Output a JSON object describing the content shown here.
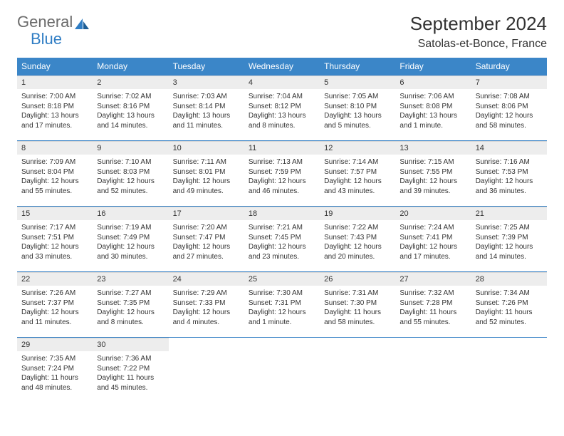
{
  "brand": {
    "part1": "General",
    "part2": "Blue"
  },
  "title": "September 2024",
  "location": "Satolas-et-Bonce, France",
  "colors": {
    "header_bg": "#3b86c8",
    "header_text": "#ffffff",
    "week_border": "#2f7dc4",
    "daynum_bg": "#ededed",
    "text": "#333333",
    "brand_grey": "#6b6b6b",
    "brand_blue": "#2f7dc4",
    "page_bg": "#ffffff"
  },
  "typography": {
    "title_fontsize": 26,
    "location_fontsize": 16,
    "dayhead_fontsize": 12,
    "daynum_fontsize": 11,
    "body_fontsize": 10
  },
  "weekdays": [
    "Sunday",
    "Monday",
    "Tuesday",
    "Wednesday",
    "Thursday",
    "Friday",
    "Saturday"
  ],
  "weeks": [
    [
      {
        "n": "1",
        "sr": "Sunrise: 7:00 AM",
        "ss": "Sunset: 8:18 PM",
        "d1": "Daylight: 13 hours",
        "d2": "and 17 minutes."
      },
      {
        "n": "2",
        "sr": "Sunrise: 7:02 AM",
        "ss": "Sunset: 8:16 PM",
        "d1": "Daylight: 13 hours",
        "d2": "and 14 minutes."
      },
      {
        "n": "3",
        "sr": "Sunrise: 7:03 AM",
        "ss": "Sunset: 8:14 PM",
        "d1": "Daylight: 13 hours",
        "d2": "and 11 minutes."
      },
      {
        "n": "4",
        "sr": "Sunrise: 7:04 AM",
        "ss": "Sunset: 8:12 PM",
        "d1": "Daylight: 13 hours",
        "d2": "and 8 minutes."
      },
      {
        "n": "5",
        "sr": "Sunrise: 7:05 AM",
        "ss": "Sunset: 8:10 PM",
        "d1": "Daylight: 13 hours",
        "d2": "and 5 minutes."
      },
      {
        "n": "6",
        "sr": "Sunrise: 7:06 AM",
        "ss": "Sunset: 8:08 PM",
        "d1": "Daylight: 13 hours",
        "d2": "and 1 minute."
      },
      {
        "n": "7",
        "sr": "Sunrise: 7:08 AM",
        "ss": "Sunset: 8:06 PM",
        "d1": "Daylight: 12 hours",
        "d2": "and 58 minutes."
      }
    ],
    [
      {
        "n": "8",
        "sr": "Sunrise: 7:09 AM",
        "ss": "Sunset: 8:04 PM",
        "d1": "Daylight: 12 hours",
        "d2": "and 55 minutes."
      },
      {
        "n": "9",
        "sr": "Sunrise: 7:10 AM",
        "ss": "Sunset: 8:03 PM",
        "d1": "Daylight: 12 hours",
        "d2": "and 52 minutes."
      },
      {
        "n": "10",
        "sr": "Sunrise: 7:11 AM",
        "ss": "Sunset: 8:01 PM",
        "d1": "Daylight: 12 hours",
        "d2": "and 49 minutes."
      },
      {
        "n": "11",
        "sr": "Sunrise: 7:13 AM",
        "ss": "Sunset: 7:59 PM",
        "d1": "Daylight: 12 hours",
        "d2": "and 46 minutes."
      },
      {
        "n": "12",
        "sr": "Sunrise: 7:14 AM",
        "ss": "Sunset: 7:57 PM",
        "d1": "Daylight: 12 hours",
        "d2": "and 43 minutes."
      },
      {
        "n": "13",
        "sr": "Sunrise: 7:15 AM",
        "ss": "Sunset: 7:55 PM",
        "d1": "Daylight: 12 hours",
        "d2": "and 39 minutes."
      },
      {
        "n": "14",
        "sr": "Sunrise: 7:16 AM",
        "ss": "Sunset: 7:53 PM",
        "d1": "Daylight: 12 hours",
        "d2": "and 36 minutes."
      }
    ],
    [
      {
        "n": "15",
        "sr": "Sunrise: 7:17 AM",
        "ss": "Sunset: 7:51 PM",
        "d1": "Daylight: 12 hours",
        "d2": "and 33 minutes."
      },
      {
        "n": "16",
        "sr": "Sunrise: 7:19 AM",
        "ss": "Sunset: 7:49 PM",
        "d1": "Daylight: 12 hours",
        "d2": "and 30 minutes."
      },
      {
        "n": "17",
        "sr": "Sunrise: 7:20 AM",
        "ss": "Sunset: 7:47 PM",
        "d1": "Daylight: 12 hours",
        "d2": "and 27 minutes."
      },
      {
        "n": "18",
        "sr": "Sunrise: 7:21 AM",
        "ss": "Sunset: 7:45 PM",
        "d1": "Daylight: 12 hours",
        "d2": "and 23 minutes."
      },
      {
        "n": "19",
        "sr": "Sunrise: 7:22 AM",
        "ss": "Sunset: 7:43 PM",
        "d1": "Daylight: 12 hours",
        "d2": "and 20 minutes."
      },
      {
        "n": "20",
        "sr": "Sunrise: 7:24 AM",
        "ss": "Sunset: 7:41 PM",
        "d1": "Daylight: 12 hours",
        "d2": "and 17 minutes."
      },
      {
        "n": "21",
        "sr": "Sunrise: 7:25 AM",
        "ss": "Sunset: 7:39 PM",
        "d1": "Daylight: 12 hours",
        "d2": "and 14 minutes."
      }
    ],
    [
      {
        "n": "22",
        "sr": "Sunrise: 7:26 AM",
        "ss": "Sunset: 7:37 PM",
        "d1": "Daylight: 12 hours",
        "d2": "and 11 minutes."
      },
      {
        "n": "23",
        "sr": "Sunrise: 7:27 AM",
        "ss": "Sunset: 7:35 PM",
        "d1": "Daylight: 12 hours",
        "d2": "and 8 minutes."
      },
      {
        "n": "24",
        "sr": "Sunrise: 7:29 AM",
        "ss": "Sunset: 7:33 PM",
        "d1": "Daylight: 12 hours",
        "d2": "and 4 minutes."
      },
      {
        "n": "25",
        "sr": "Sunrise: 7:30 AM",
        "ss": "Sunset: 7:31 PM",
        "d1": "Daylight: 12 hours",
        "d2": "and 1 minute."
      },
      {
        "n": "26",
        "sr": "Sunrise: 7:31 AM",
        "ss": "Sunset: 7:30 PM",
        "d1": "Daylight: 11 hours",
        "d2": "and 58 minutes."
      },
      {
        "n": "27",
        "sr": "Sunrise: 7:32 AM",
        "ss": "Sunset: 7:28 PM",
        "d1": "Daylight: 11 hours",
        "d2": "and 55 minutes."
      },
      {
        "n": "28",
        "sr": "Sunrise: 7:34 AM",
        "ss": "Sunset: 7:26 PM",
        "d1": "Daylight: 11 hours",
        "d2": "and 52 minutes."
      }
    ],
    [
      {
        "n": "29",
        "sr": "Sunrise: 7:35 AM",
        "ss": "Sunset: 7:24 PM",
        "d1": "Daylight: 11 hours",
        "d2": "and 48 minutes."
      },
      {
        "n": "30",
        "sr": "Sunrise: 7:36 AM",
        "ss": "Sunset: 7:22 PM",
        "d1": "Daylight: 11 hours",
        "d2": "and 45 minutes."
      },
      null,
      null,
      null,
      null,
      null
    ]
  ]
}
